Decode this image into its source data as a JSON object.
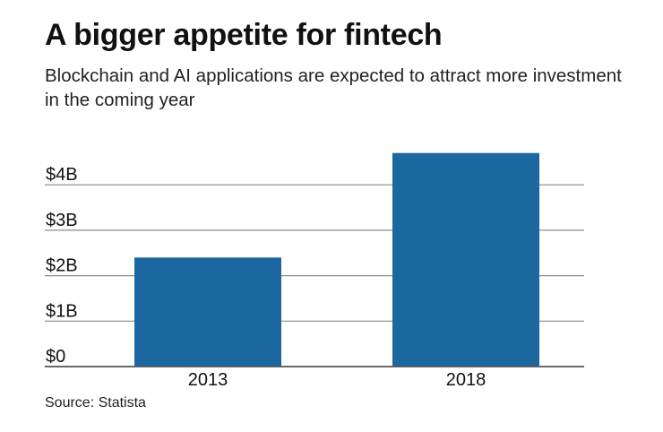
{
  "title": "A bigger appetite for fintech",
  "subtitle": "Blockchain and AI applications are expected to attract more investment in the coming year",
  "source": "Source: Statista",
  "chart_data": {
    "type": "bar",
    "categories": [
      "2013",
      "2018"
    ],
    "values": [
      2.4,
      4.7
    ],
    "ylim": [
      0,
      4.7
    ],
    "yticks": [
      0,
      1,
      2,
      3,
      4
    ],
    "ytick_labels": [
      "$0",
      "$1B",
      "$2B",
      "$3B",
      "$4B"
    ],
    "xlabel": "",
    "ylabel": "",
    "grid": true,
    "bar_color": "#1c67a0"
  }
}
